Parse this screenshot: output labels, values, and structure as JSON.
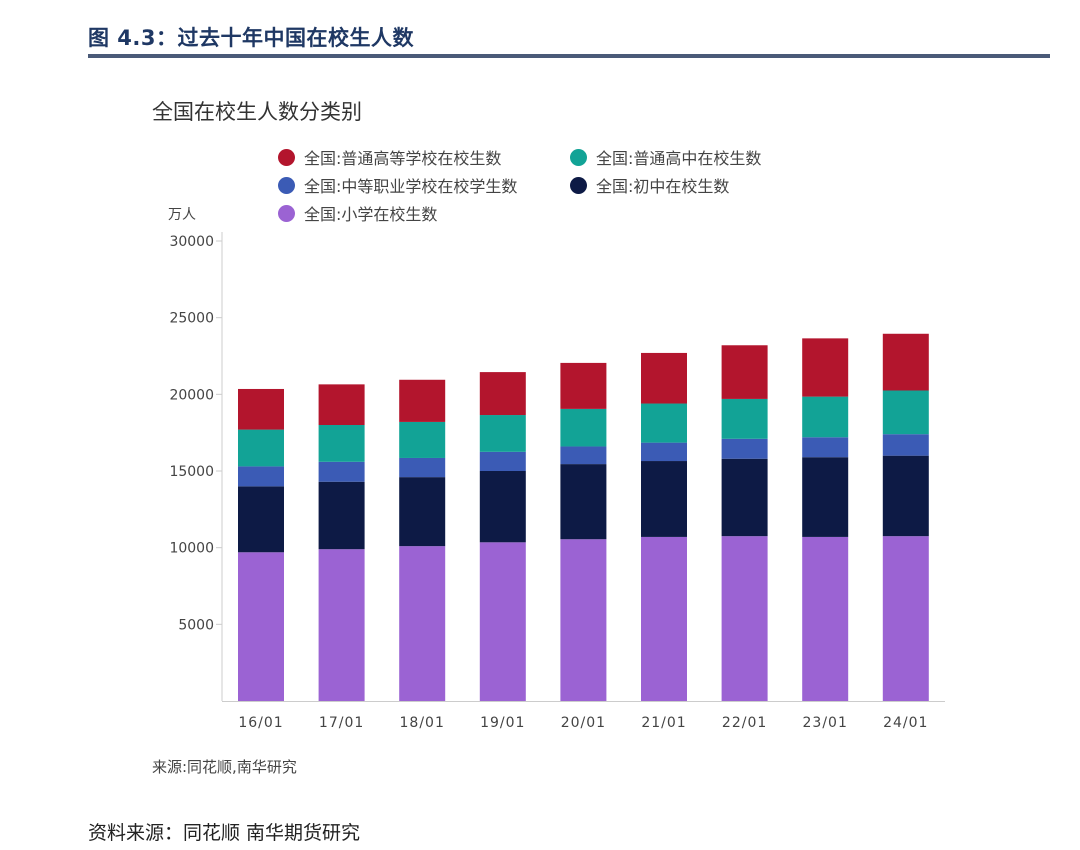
{
  "figure_title": "图 4.3：过去十年中国在校生人数",
  "source_inner": "来源:同花顺,南华研究",
  "source_outer": "资料来源：同花顺   南华期货研究",
  "chart_data": {
    "type": "bar",
    "stacked": true,
    "title": "全国在校生人数分类别",
    "ylabel": "万人",
    "xlabel": "",
    "ylim": [
      0,
      30000
    ],
    "yticks": [
      5000,
      10000,
      15000,
      20000,
      25000,
      30000
    ],
    "categories": [
      "16/01",
      "17/01",
      "18/01",
      "19/01",
      "20/01",
      "21/01",
      "22/01",
      "23/01",
      "24/01"
    ],
    "legend_placement": "top",
    "grid": false,
    "series": [
      {
        "name": "全国:小学在校生数",
        "color": "#9b63d3",
        "values": [
          9700,
          9900,
          10100,
          10350,
          10550,
          10700,
          10750,
          10700,
          10750
        ]
      },
      {
        "name": "全国:初中在校生数",
        "color": "#0d1a45",
        "values": [
          4300,
          4400,
          4500,
          4650,
          4900,
          4950,
          5050,
          5200,
          5250
        ]
      },
      {
        "name": "全国:中等职业学校在校学生数",
        "color": "#3b5bb5",
        "values": [
          1300,
          1300,
          1250,
          1250,
          1150,
          1200,
          1300,
          1300,
          1400
        ]
      },
      {
        "name": "全国:普通高中在校生数",
        "color": "#12a396",
        "values": [
          2400,
          2400,
          2350,
          2400,
          2450,
          2550,
          2600,
          2650,
          2850
        ]
      },
      {
        "name": "全国:普通高等学校在校生数",
        "color": "#b3152d",
        "values": [
          2650,
          2650,
          2750,
          2800,
          3000,
          3300,
          3500,
          3800,
          3700
        ]
      }
    ],
    "legend_order": [
      4,
      3,
      2,
      1,
      0
    ]
  }
}
